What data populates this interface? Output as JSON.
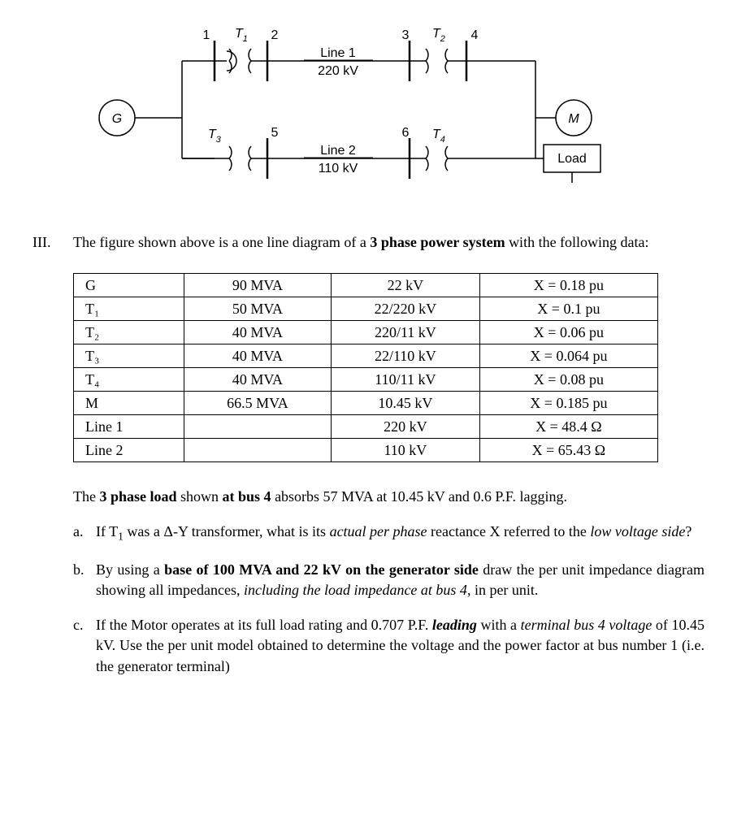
{
  "diagram": {
    "generator_label": "G",
    "motor_label": "M",
    "load_label": "Load",
    "buses": {
      "b1": "1",
      "b2": "2",
      "b3": "3",
      "b4": "4",
      "b5": "5",
      "b6": "6"
    },
    "transformers": {
      "t1": "T",
      "t1s": "1",
      "t2": "T",
      "t2s": "2",
      "t3": "T",
      "t3s": "3",
      "t4": "T",
      "t4s": "4"
    },
    "lines": {
      "l1_name": "Line 1",
      "l1_kv": "220 kV",
      "l2_name": "Line 2",
      "l2_kv": "110 kV"
    },
    "stroke": "#000000",
    "fill_bg": "#ffffff"
  },
  "intro": {
    "numeral": "III.",
    "text_a": "The figure shown above is a one line diagram of a ",
    "text_b": "3 phase power system",
    "text_c": " with the following data:"
  },
  "table": {
    "rows": [
      {
        "c0": "G",
        "c1": "90 MVA",
        "c2": "22 kV",
        "c3": "X = 0.18 pu"
      },
      {
        "c0": "T₁",
        "c1": "50 MVA",
        "c2": "22/220 kV",
        "c3": "X = 0.1 pu"
      },
      {
        "c0": "T₂",
        "c1": "40 MVA",
        "c2": "220/11 kV",
        "c3": "X = 0.06 pu"
      },
      {
        "c0": "T₃",
        "c1": "40 MVA",
        "c2": "22/110 kV",
        "c3": "X = 0.064 pu"
      },
      {
        "c0": "T₄",
        "c1": "40 MVA",
        "c2": "110/11 kV",
        "c3": "X = 0.08 pu"
      },
      {
        "c0": "M",
        "c1": "66.5 MVA",
        "c2": "10.45 kV",
        "c3": "X = 0.185 pu"
      },
      {
        "c0": "Line 1",
        "c1": "",
        "c2": "220 kV",
        "c3": "X = 48.4 Ω"
      },
      {
        "c0": "Line 2",
        "c1": "",
        "c2": "110 kV",
        "c3": "X = 65.43 Ω"
      }
    ]
  },
  "load_para": {
    "a": "The ",
    "b": "3 phase load",
    "c": " shown ",
    "d": "at bus 4",
    "e": " absorbs 57 MVA at 10.45 kV and 0.6 P.F. lagging."
  },
  "qa": {
    "letter": "a.",
    "t1": "If T",
    "t1sub": "1",
    "t2": " was a Δ-Y transformer, what is its ",
    "t3": "actual per phase",
    "t4": " reactance X referred to the ",
    "t5": "low voltage side",
    "t6": "?"
  },
  "qb": {
    "letter": "b.",
    "t1": "By using a ",
    "t2": "base of 100 MVA and 22 kV on the generator side",
    "t3": " draw the per unit impedance diagram showing all impedances, ",
    "t4": "including the load impedance at bus 4",
    "t5": ", in per unit."
  },
  "qc": {
    "letter": "c.",
    "t1": "If the Motor operates at its full load rating and 0.707 P.F. ",
    "t2": "leading",
    "t3": " with a ",
    "t4": "terminal bus 4 voltage",
    "t5": " of 10.45 kV. Use the per unit model obtained to determine the voltage and the power factor at bus number 1 (i.e. the generator terminal)"
  }
}
